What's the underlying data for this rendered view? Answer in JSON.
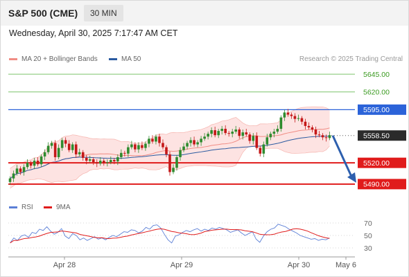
{
  "header": {
    "instrument": "S&P 500 (CME)",
    "timeframe": "30 MIN",
    "datetime": "Wednesday, April 30, 2025 7:17:47 AM CET"
  },
  "legend_main": [
    {
      "label": "MA 20 + Bollinger Bands",
      "color": "#f08c84"
    },
    {
      "label": "MA 50",
      "color": "#2a5aa0"
    }
  ],
  "credit": "Research © 2025 Trading Central",
  "legend_rsi": [
    {
      "label": "RSI",
      "color": "#5b7fd6"
    },
    {
      "label": "9MA",
      "color": "#e01b1b"
    }
  ],
  "colors": {
    "up": "#2e8b2e",
    "down": "#c41818",
    "support": "#e01b1b",
    "resistance": "#2b63d9",
    "target": "#7cc46a",
    "arrow": "#2d5fae",
    "band_fill": "#fde3e2"
  },
  "chart_data": {
    "type": "candlestick",
    "x_ticks": [
      "Apr 28",
      "Apr 29",
      "Apr 30",
      "May 6"
    ],
    "ylim": [
      5484,
      5652
    ],
    "levels": [
      {
        "label": "5645.00",
        "value": 5645.0,
        "kind": "target"
      },
      {
        "label": "5620.00",
        "value": 5620.0,
        "kind": "target"
      },
      {
        "label": "5595.00",
        "value": 5595.0,
        "kind": "resistance"
      },
      {
        "label": "5558.50",
        "value": 5558.5,
        "kind": "current"
      },
      {
        "label": "5520.00",
        "value": 5520.0,
        "kind": "support"
      },
      {
        "label": "5490.00",
        "value": 5490.0,
        "kind": "support"
      }
    ],
    "projection": {
      "from": 5558.5,
      "to": 5490.0
    },
    "close": [
      5498,
      5505,
      5512,
      5507,
      5514,
      5520,
      5516,
      5523,
      5518,
      5529,
      5535,
      5544,
      5548,
      5528,
      5541,
      5552,
      5547,
      5538,
      5546,
      5532,
      5535,
      5527,
      5523,
      5525,
      5521,
      5519,
      5523,
      5520,
      5521,
      5524,
      5522,
      5528,
      5534,
      5533,
      5542,
      5546,
      5539,
      5545,
      5541,
      5547,
      5554,
      5550,
      5557,
      5548,
      5542,
      5532,
      5507,
      5513,
      5528,
      5538,
      5543,
      5548,
      5552,
      5546,
      5549,
      5554,
      5557,
      5561,
      5566,
      5559,
      5565,
      5568,
      5562,
      5561,
      5564,
      5567,
      5558,
      5563,
      5560,
      5551,
      5558,
      5541,
      5533,
      5546,
      5556,
      5561,
      5564,
      5568,
      5584,
      5591,
      5588,
      5586,
      5582,
      5583,
      5578,
      5572,
      5570,
      5567,
      5560,
      5559,
      5556,
      5555,
      5559
    ],
    "rsi": [
      38,
      46,
      42,
      49,
      51,
      47,
      55,
      53,
      60,
      58,
      64,
      57,
      52,
      55,
      61,
      49,
      45,
      53,
      50,
      43,
      46,
      42,
      45,
      48,
      44,
      46,
      43,
      47,
      50,
      48,
      52,
      56,
      55,
      59,
      58,
      54,
      57,
      63,
      60,
      66,
      67,
      62,
      52,
      43,
      38,
      49,
      51,
      55,
      58,
      56,
      59,
      61,
      57,
      60,
      58,
      62,
      60,
      63,
      61,
      59,
      55,
      57,
      59,
      54,
      50,
      53,
      56,
      44,
      39,
      49,
      56,
      60,
      62,
      68,
      66,
      64,
      60,
      57,
      54,
      50,
      48,
      46,
      44,
      45,
      42,
      44,
      43,
      46
    ],
    "rsi_ticks": [
      "70",
      "50",
      "30"
    ],
    "rsi_ylim": [
      25,
      75
    ]
  }
}
